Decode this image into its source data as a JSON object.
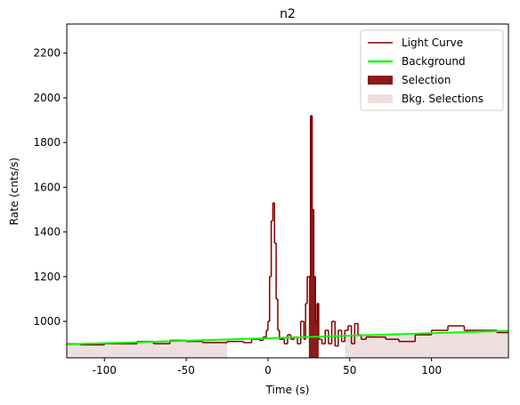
{
  "chart_data": {
    "type": "line",
    "title": "n2",
    "x_label": "Time (s)",
    "y_label": "Rate (cnts/s)",
    "xlim": [
      -123,
      147
    ],
    "ylim": [
      837,
      2330
    ],
    "xticks": [
      -100,
      -50,
      0,
      50,
      100
    ],
    "yticks": [
      1000,
      1200,
      1400,
      1600,
      1800,
      2000,
      2200
    ],
    "legend": "upper right",
    "series": [
      {
        "name": "Light Curve",
        "color": "#800000",
        "step": true,
        "x": [
          -123,
          -115,
          -100,
          -90,
          -80,
          -70,
          -60,
          -50,
          -40,
          -25,
          -15,
          -10,
          -5,
          -3,
          -1,
          0,
          1,
          2,
          3,
          4,
          5,
          6,
          7,
          10,
          12,
          14,
          16,
          18,
          20,
          22,
          23,
          24,
          25,
          26,
          27,
          28,
          29,
          30,
          31,
          33,
          35,
          37,
          39,
          41,
          43,
          45,
          47,
          49,
          51,
          53,
          55,
          57,
          60,
          72,
          80,
          90,
          100,
          110,
          120,
          130,
          140
        ],
        "values": [
          900,
          895,
          900,
          900,
          910,
          900,
          915,
          910,
          905,
          910,
          905,
          920,
          915,
          930,
          960,
          1000,
          1200,
          1450,
          1530,
          1350,
          1100,
          960,
          920,
          900,
          940,
          920,
          930,
          900,
          1000,
          920,
          1080,
          1200,
          1200,
          1920,
          1500,
          1200,
          1000,
          1080,
          920,
          900,
          960,
          900,
          1000,
          890,
          960,
          910,
          960,
          980,
          900,
          990,
          940,
          920,
          930,
          920,
          910,
          940,
          960,
          980,
          960,
          960,
          950
        ]
      },
      {
        "name": "Background",
        "color": "#00ff00",
        "x": [
          -123,
          147
        ],
        "values": [
          897,
          958
        ]
      }
    ],
    "selections": [
      {
        "name": "Selection",
        "color": "#8b1a1a",
        "ranges": [
          [
            25,
            31
          ]
        ]
      },
      {
        "name": "Bkg. Selections",
        "color": "#efdfdf",
        "ranges": [
          [
            -123,
            -25
          ],
          [
            47,
            147
          ]
        ]
      }
    ]
  }
}
